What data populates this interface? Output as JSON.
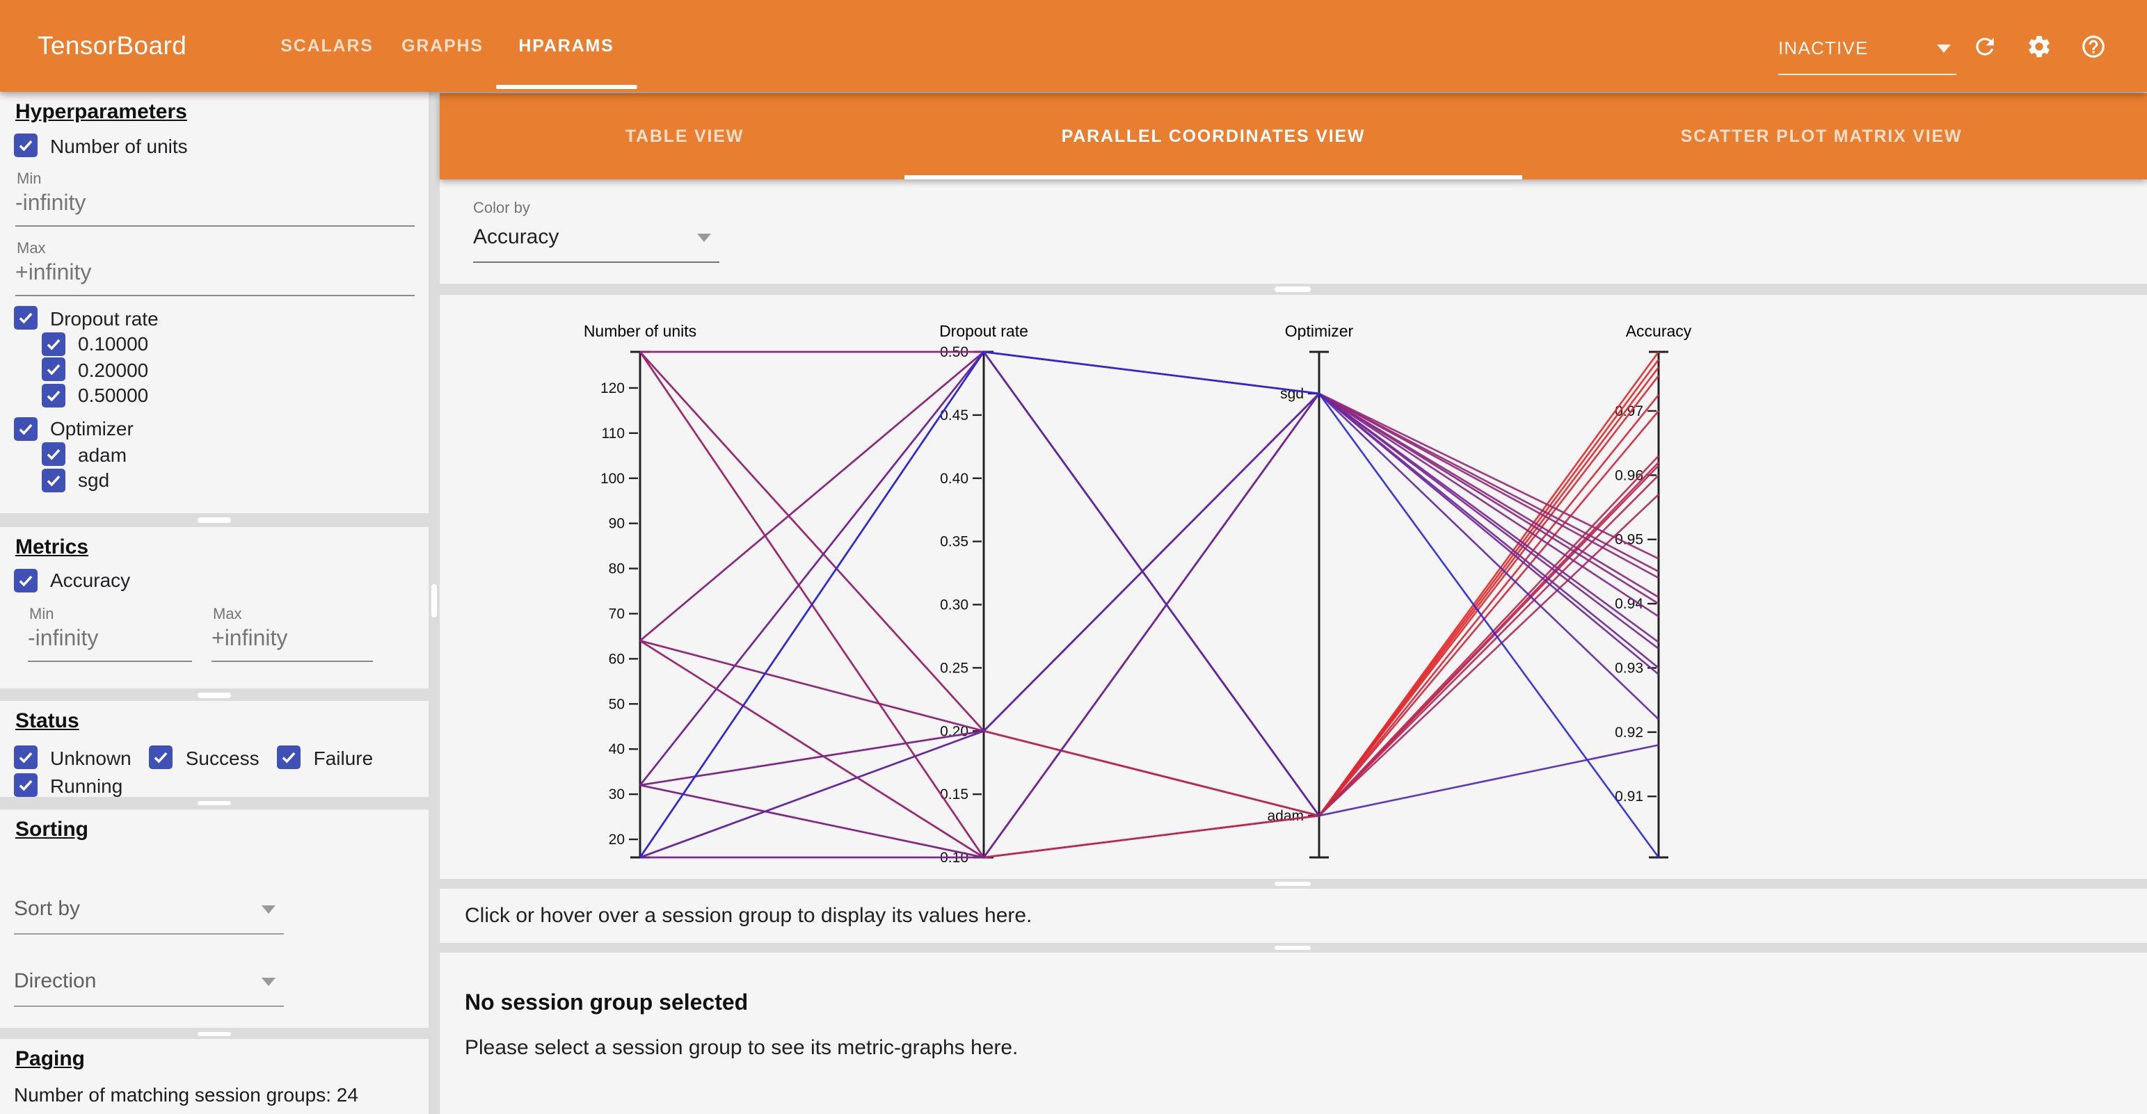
{
  "colors": {
    "accent": "#E87E2F",
    "checkbox": "#3F51B5",
    "line_low": "#2828DC",
    "line_high": "#E62828"
  },
  "topbar": {
    "title": "TensorBoard",
    "tabs": [
      {
        "label": "SCALARS"
      },
      {
        "label": "GRAPHS"
      },
      {
        "label": "HPARAMS"
      }
    ],
    "active_tab": "HPARAMS",
    "run_selector_value": "INACTIVE"
  },
  "main_tabs": [
    {
      "label": "TABLE VIEW"
    },
    {
      "label": "PARALLEL COORDINATES VIEW"
    },
    {
      "label": "SCATTER PLOT MATRIX VIEW"
    }
  ],
  "active_main_tab": "PARALLEL COORDINATES VIEW",
  "color_by": {
    "label": "Color by",
    "value": "Accuracy"
  },
  "sidebar": {
    "hyperparameters": {
      "heading": "Hyperparameters",
      "number_of_units": {
        "label": "Number of units",
        "checked": true,
        "min_label": "Min",
        "min_value": "-infinity",
        "max_label": "Max",
        "max_value": "+infinity"
      },
      "dropout_rate": {
        "label": "Dropout rate",
        "checked": true,
        "children": [
          "0.10000",
          "0.20000",
          "0.50000"
        ]
      },
      "optimizer": {
        "label": "Optimizer",
        "checked": true,
        "children": [
          "adam",
          "sgd"
        ]
      }
    },
    "metrics": {
      "heading": "Metrics",
      "accuracy": {
        "label": "Accuracy",
        "checked": true
      },
      "min_label": "Min",
      "min_value": "-infinity",
      "max_label": "Max",
      "max_value": "+infinity"
    },
    "status": {
      "heading": "Status",
      "items": [
        {
          "label": "Unknown",
          "checked": true
        },
        {
          "label": "Success",
          "checked": true
        },
        {
          "label": "Failure",
          "checked": true
        },
        {
          "label": "Running",
          "checked": true
        }
      ]
    },
    "sorting": {
      "heading": "Sorting",
      "sort_by_label": "Sort by",
      "direction_label": "Direction"
    },
    "paging": {
      "heading": "Paging",
      "summary": "Number of matching session groups: 24"
    }
  },
  "messages": {
    "hover_hint": "Click or hover over a session group to display its values here.",
    "no_selection_title": "No session group selected",
    "no_selection_body": "Please select a session group to see its metric-graphs here."
  },
  "chart_data": {
    "type": "parallel-coordinates",
    "color": {
      "by": "Accuracy",
      "low": "#2828DC",
      "high": "#E62828"
    },
    "axes": [
      {
        "name": "Number of units",
        "type": "linear",
        "domain": [
          16,
          128
        ],
        "ticks": [
          20,
          30,
          40,
          50,
          60,
          70,
          80,
          90,
          100,
          110,
          120
        ],
        "tick_decimals": 0
      },
      {
        "name": "Dropout rate",
        "type": "linear",
        "domain": [
          0.1,
          0.5
        ],
        "ticks": [
          0.1,
          0.15,
          0.2,
          0.25,
          0.3,
          0.35,
          0.4,
          0.45,
          0.5
        ],
        "tick_decimals": 2
      },
      {
        "name": "Optimizer",
        "type": "categorical",
        "categories": [
          "adam",
          "sgd"
        ]
      },
      {
        "name": "Accuracy",
        "type": "linear",
        "domain": [
          0.9005,
          0.9792
        ],
        "ticks": [
          0.91,
          0.92,
          0.93,
          0.94,
          0.95,
          0.96,
          0.97
        ],
        "tick_decimals": 2
      }
    ],
    "runs": [
      {
        "units": 128,
        "dropout": 0.1,
        "optimizer": "adam",
        "accuracy": 0.9792
      },
      {
        "units": 128,
        "dropout": 0.2,
        "optimizer": "adam",
        "accuracy": 0.978
      },
      {
        "units": 128,
        "dropout": 0.5,
        "optimizer": "adam",
        "accuracy": 0.9725
      },
      {
        "units": 64,
        "dropout": 0.1,
        "optimizer": "adam",
        "accuracy": 0.9768
      },
      {
        "units": 64,
        "dropout": 0.2,
        "optimizer": "adam",
        "accuracy": 0.9755
      },
      {
        "units": 64,
        "dropout": 0.5,
        "optimizer": "adam",
        "accuracy": 0.97
      },
      {
        "units": 32,
        "dropout": 0.1,
        "optimizer": "adam",
        "accuracy": 0.963
      },
      {
        "units": 32,
        "dropout": 0.2,
        "optimizer": "adam",
        "accuracy": 0.962
      },
      {
        "units": 32,
        "dropout": 0.5,
        "optimizer": "adam",
        "accuracy": 0.957
      },
      {
        "units": 16,
        "dropout": 0.1,
        "optimizer": "adam",
        "accuracy": 0.9615
      },
      {
        "units": 16,
        "dropout": 0.2,
        "optimizer": "adam",
        "accuracy": 0.96
      },
      {
        "units": 16,
        "dropout": 0.5,
        "optimizer": "adam",
        "accuracy": 0.918
      },
      {
        "units": 128,
        "dropout": 0.1,
        "optimizer": "sgd",
        "accuracy": 0.947
      },
      {
        "units": 128,
        "dropout": 0.2,
        "optimizer": "sgd",
        "accuracy": 0.945
      },
      {
        "units": 128,
        "dropout": 0.5,
        "optimizer": "sgd",
        "accuracy": 0.94
      },
      {
        "units": 64,
        "dropout": 0.1,
        "optimizer": "sgd",
        "accuracy": 0.944
      },
      {
        "units": 64,
        "dropout": 0.2,
        "optimizer": "sgd",
        "accuracy": 0.941
      },
      {
        "units": 64,
        "dropout": 0.5,
        "optimizer": "sgd",
        "accuracy": 0.938
      },
      {
        "units": 32,
        "dropout": 0.1,
        "optimizer": "sgd",
        "accuracy": 0.934
      },
      {
        "units": 32,
        "dropout": 0.2,
        "optimizer": "sgd",
        "accuracy": 0.933
      },
      {
        "units": 32,
        "dropout": 0.5,
        "optimizer": "sgd",
        "accuracy": 0.929
      },
      {
        "units": 16,
        "dropout": 0.1,
        "optimizer": "sgd",
        "accuracy": 0.93
      },
      {
        "units": 16,
        "dropout": 0.2,
        "optimizer": "sgd",
        "accuracy": 0.922
      },
      {
        "units": 16,
        "dropout": 0.5,
        "optimizer": "sgd",
        "accuracy": 0.9005
      }
    ]
  }
}
